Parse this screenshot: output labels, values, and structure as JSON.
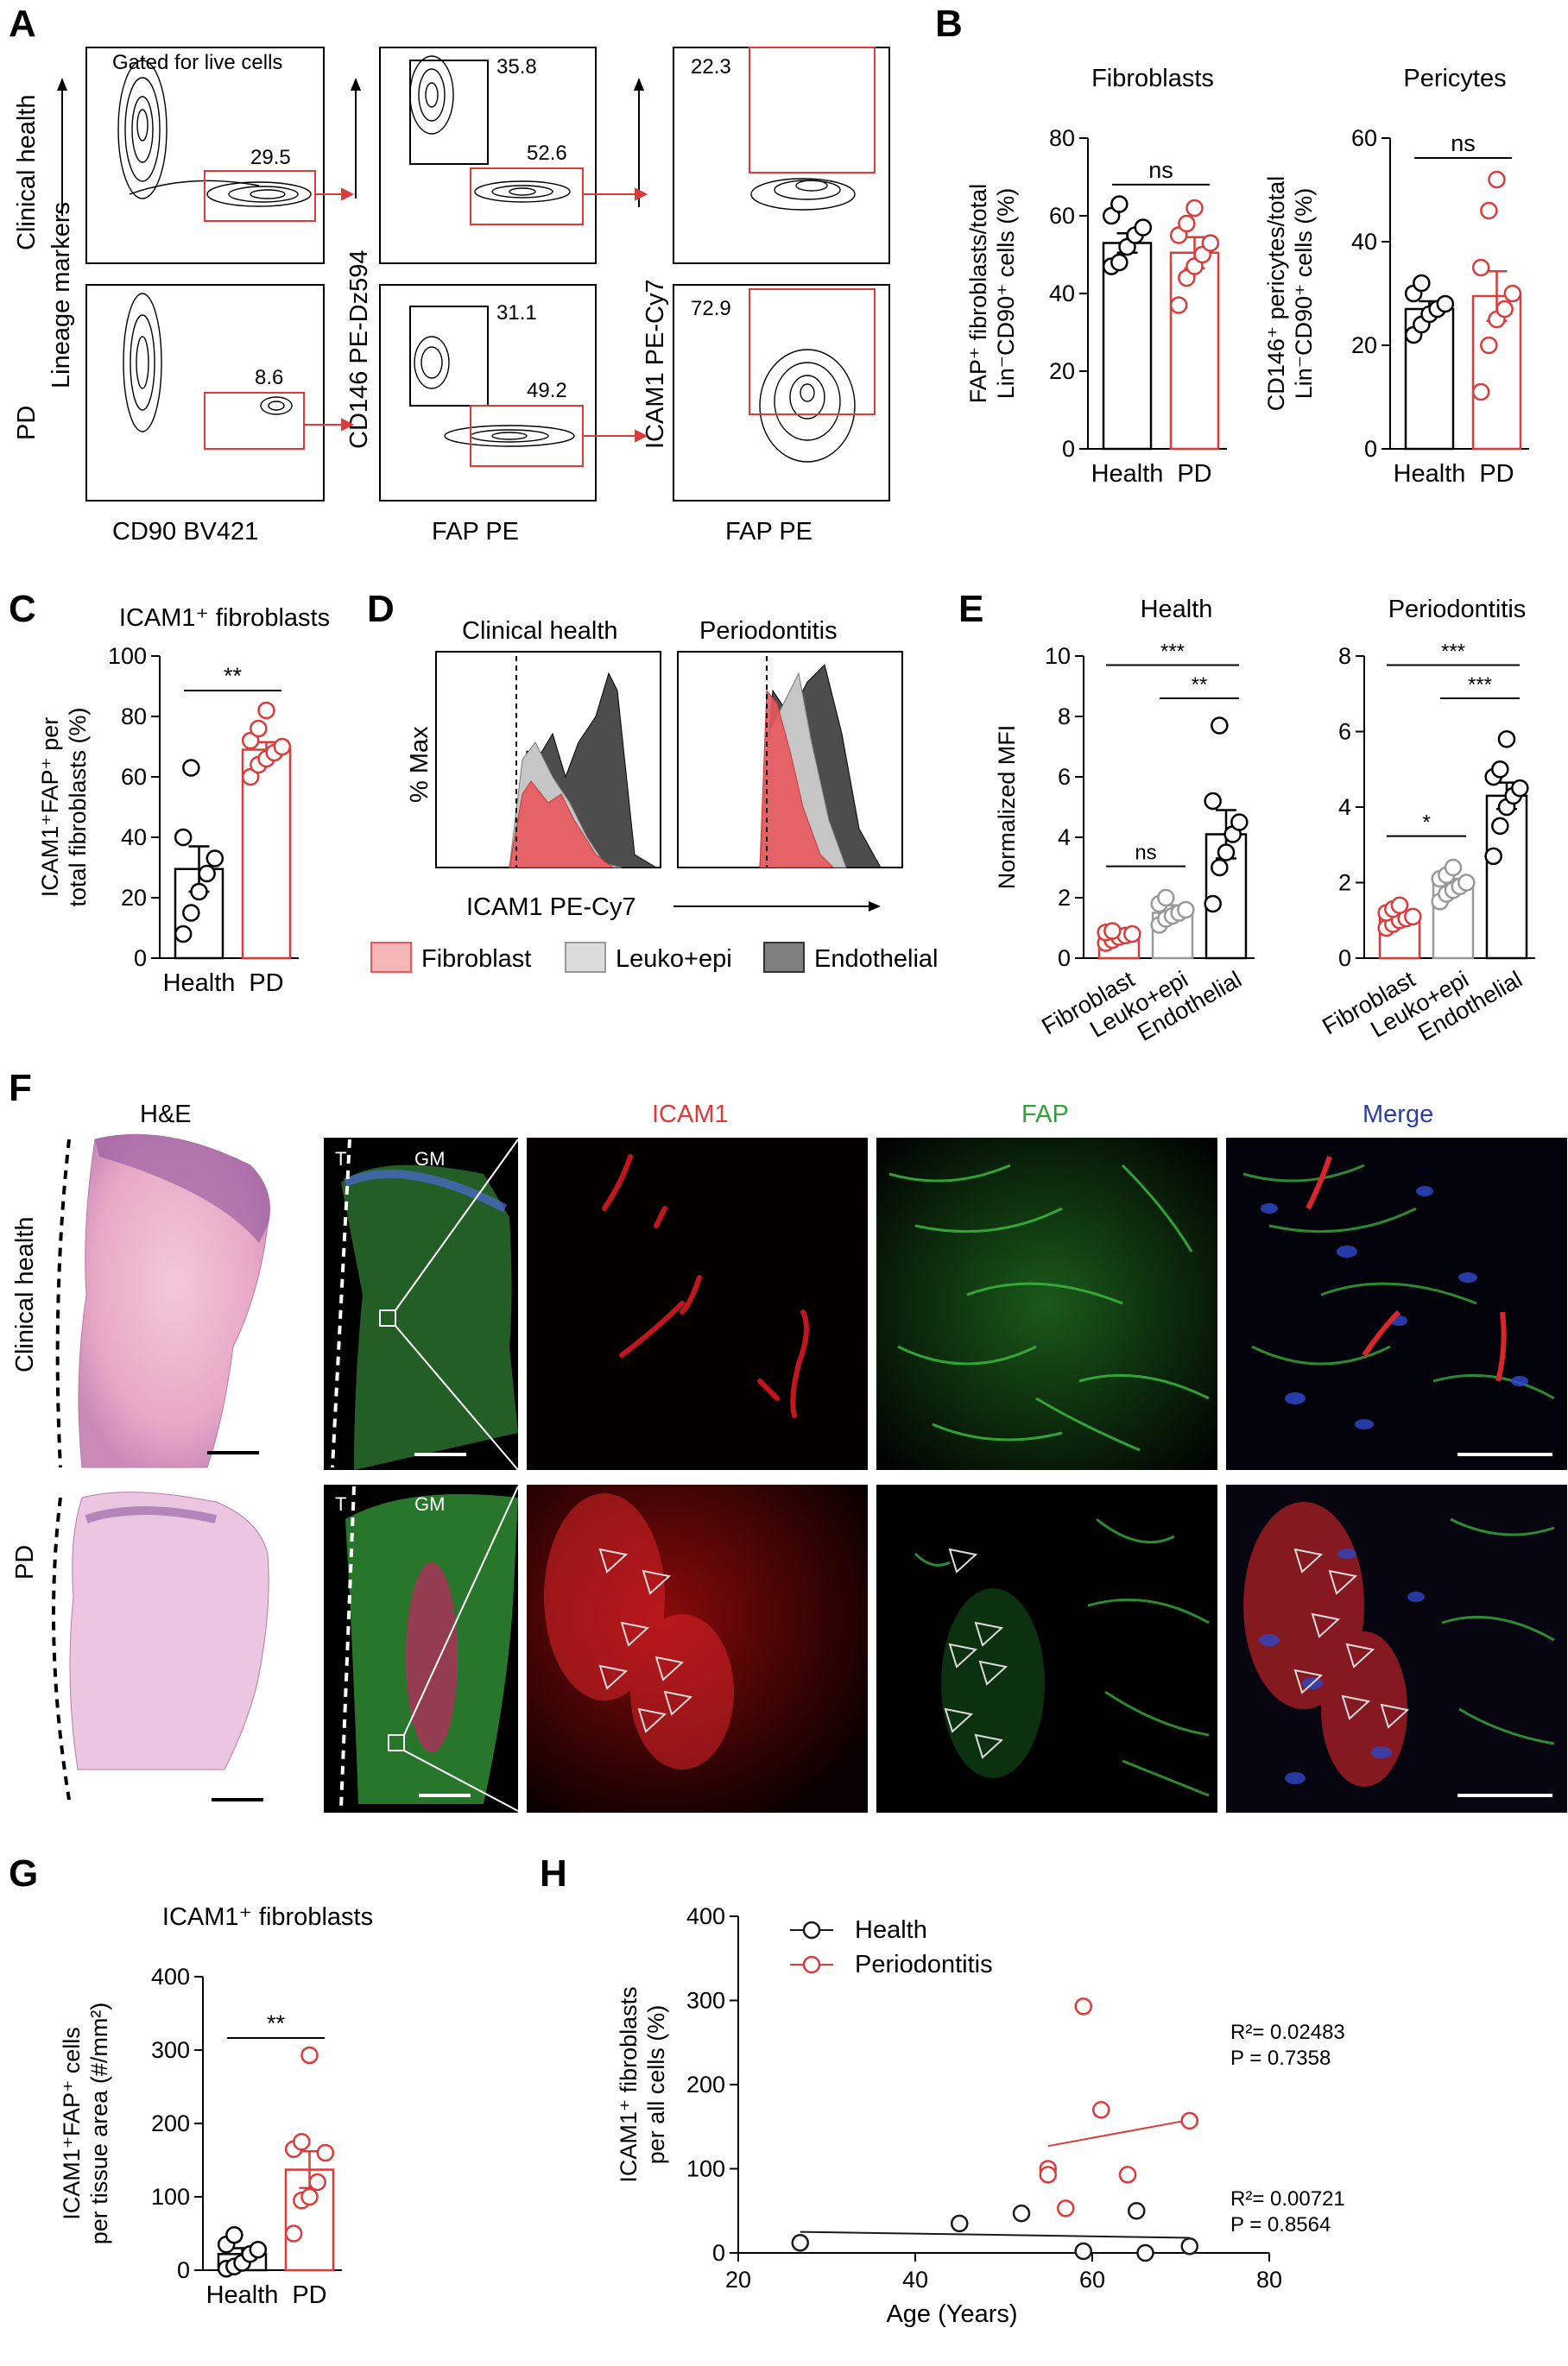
{
  "panel_labels": {
    "A": "A",
    "B": "B",
    "C": "C",
    "D": "D",
    "E": "E",
    "F": "F",
    "G": "G",
    "H": "H"
  },
  "panelA": {
    "gated_text": "Gated for live cells",
    "row_labels": [
      "Clinical health",
      "PD"
    ],
    "ylabels": [
      "Lineage markers",
      "CD146 PE-Dz594",
      "ICAM1 PE-Cy7"
    ],
    "xlabels": [
      "CD90 BV421",
      "FAP PE",
      "FAP PE"
    ],
    "gates": {
      "health": [
        "29.5",
        "35.8",
        "52.6",
        "22.3"
      ],
      "pd": [
        "8.6",
        "31.1",
        "49.2",
        "72.9"
      ]
    }
  },
  "panelD": {
    "titles": [
      "Clinical health",
      "Periodontitis"
    ],
    "ylabel": "% Max",
    "xlabel": "ICAM1 PE-Cy7",
    "legend": [
      "Fibroblast",
      "Leuko+epi",
      "Endothelial"
    ],
    "colors": {
      "fibroblast": "#e8585c",
      "leuko": "#c6c6c6",
      "endothelial": "#4d4d4d"
    }
  },
  "panelF": {
    "he_title": "H&E",
    "channels": [
      "ICAM1",
      "FAP",
      "Merge"
    ],
    "row_labels": [
      "Clinical health",
      "PD"
    ],
    "tags": {
      "t": "T",
      "gm": "GM"
    },
    "colors": {
      "ICAM1": "#dd3a3a",
      "FAP": "#2fa33a",
      "Merge": "#2b3f9e"
    }
  },
  "chart_data": [
    {
      "type": "bar",
      "id": "B-fibroblasts",
      "title": "Fibroblasts",
      "ylabel": "FAP⁺ fibroblasts/total Lin⁻CD90⁺ cells (%)",
      "categories": [
        "Health",
        "PD"
      ],
      "values": [
        53,
        50.5
      ],
      "sem": [
        2.5,
        4
      ],
      "points": [
        [
          47,
          48,
          52,
          55,
          57,
          60,
          63
        ],
        [
          37,
          44,
          47,
          50,
          53,
          55,
          58,
          62
        ]
      ],
      "ylim": [
        0,
        80
      ],
      "yticks": [
        0,
        20,
        40,
        60,
        80
      ],
      "annotation": "ns"
    },
    {
      "type": "bar",
      "id": "B-pericytes",
      "title": "Pericytes",
      "ylabel": "CD146⁺ pericytes/total Lin⁻CD90⁺ cells (%)",
      "categories": [
        "Health",
        "PD"
      ],
      "values": [
        27,
        29.5
      ],
      "sem": [
        1.5,
        4.8
      ],
      "points": [
        [
          22,
          24,
          26,
          27,
          28,
          30,
          32
        ],
        [
          11,
          20,
          25,
          27,
          30,
          35,
          46,
          52
        ]
      ],
      "ylim": [
        0,
        60
      ],
      "yticks": [
        0,
        20,
        40,
        60
      ],
      "annotation": "ns"
    },
    {
      "type": "bar",
      "id": "C",
      "title": "ICAM1⁺ fibroblasts",
      "ylabel": "ICAM1⁺FAP⁺ per total fibroblasts (%)",
      "categories": [
        "Health",
        "PD"
      ],
      "values": [
        29.5,
        69
      ],
      "sem": [
        7.5,
        2.5
      ],
      "points": [
        [
          8,
          15,
          22,
          28,
          33,
          40,
          63
        ],
        [
          60,
          64,
          66,
          68,
          70,
          72,
          76,
          82
        ]
      ],
      "ylim": [
        0,
        100
      ],
      "yticks": [
        0,
        20,
        40,
        60,
        80,
        100
      ],
      "annotation": "**"
    },
    {
      "type": "bar",
      "id": "E-health",
      "title": "Health",
      "ylabel": "Normalized MFI",
      "categories": [
        "Fibroblast",
        "Leuko+epi",
        "Endothelial"
      ],
      "values": [
        0.7,
        1.5,
        4.1
      ],
      "sem": [
        0.1,
        0.25,
        0.8
      ],
      "points": [
        [
          0.5,
          0.6,
          0.7,
          0.75,
          0.8,
          0.85,
          0.9
        ],
        [
          1.1,
          1.3,
          1.4,
          1.5,
          1.6,
          1.8,
          2.0
        ],
        [
          1.8,
          3.0,
          3.5,
          4.1,
          4.5,
          5.2,
          7.7
        ]
      ],
      "ylim": [
        0,
        10
      ],
      "yticks": [
        0,
        2,
        4,
        6,
        8,
        10
      ],
      "annotations": [
        {
          "pair": [
            0,
            1
          ],
          "text": "ns"
        },
        {
          "pair": [
            1,
            2
          ],
          "text": "**"
        },
        {
          "pair": [
            0,
            2
          ],
          "text": "***"
        }
      ]
    },
    {
      "type": "bar",
      "id": "E-periodontitis",
      "title": "Periodontitis",
      "ylabel": "",
      "categories": [
        "Fibroblast",
        "Leuko+epi",
        "Endothelial"
      ],
      "values": [
        1.05,
        1.95,
        4.3
      ],
      "sem": [
        0.1,
        0.15,
        0.35
      ],
      "points": [
        [
          0.8,
          0.9,
          1.0,
          1.05,
          1.1,
          1.2,
          1.3,
          1.4
        ],
        [
          1.5,
          1.7,
          1.8,
          1.9,
          2.0,
          2.1,
          2.2,
          2.4
        ],
        [
          2.7,
          3.5,
          4.0,
          4.3,
          4.5,
          4.8,
          5.0,
          5.8
        ]
      ],
      "ylim": [
        0,
        8
      ],
      "yticks": [
        0,
        2,
        4,
        6,
        8
      ],
      "annotations": [
        {
          "pair": [
            0,
            1
          ],
          "text": "*"
        },
        {
          "pair": [
            1,
            2
          ],
          "text": "***"
        },
        {
          "pair": [
            0,
            2
          ],
          "text": "***"
        }
      ]
    },
    {
      "type": "bar",
      "id": "G",
      "title": "ICAM1⁺ fibroblasts",
      "ylabel": "ICAM1⁺FAP⁺ cells per tissue area (#/mm²)",
      "categories": [
        "Health",
        "PD"
      ],
      "values": [
        22,
        137
      ],
      "sem": [
        8,
        25
      ],
      "points": [
        [
          2,
          5,
          10,
          22,
          28,
          35,
          48
        ],
        [
          50,
          95,
          100,
          120,
          160,
          165,
          175,
          293
        ]
      ],
      "ylim": [
        0,
        400
      ],
      "yticks": [
        0,
        100,
        200,
        300,
        400
      ],
      "annotation": "**"
    },
    {
      "type": "scatter",
      "id": "H",
      "xlabel": "Age (Years)",
      "ylabel": "ICAM1⁺ fibroblasts per all cells (%)",
      "xlim": [
        20,
        80
      ],
      "ylim": [
        0,
        400
      ],
      "xticks": [
        20,
        40,
        60,
        80
      ],
      "yticks": [
        0,
        100,
        200,
        300,
        400
      ],
      "legend_position": "top-left",
      "series": [
        {
          "name": "Health",
          "color": "#1a1a1a",
          "points": [
            [
              27,
              12
            ],
            [
              45,
              35
            ],
            [
              52,
              47
            ],
            [
              59,
              2
            ],
            [
              65,
              50
            ],
            [
              66,
              0
            ],
            [
              71,
              8
            ]
          ],
          "fit": [
            [
              27,
              25
            ],
            [
              71,
              18
            ]
          ],
          "r2": "R²= 0.00721",
          "p": "P = 0.8564"
        },
        {
          "name": "Periodontitis",
          "color": "#dd3a3a",
          "points": [
            [
              55,
              100
            ],
            [
              55,
              93
            ],
            [
              57,
              53
            ],
            [
              59,
              293
            ],
            [
              61,
              170
            ],
            [
              64,
              93
            ],
            [
              71,
              157
            ]
          ],
          "fit": [
            [
              55,
              127
            ],
            [
              71,
              158
            ]
          ],
          "r2": "R²= 0.02483",
          "p": "P = 0.7358"
        }
      ]
    }
  ]
}
